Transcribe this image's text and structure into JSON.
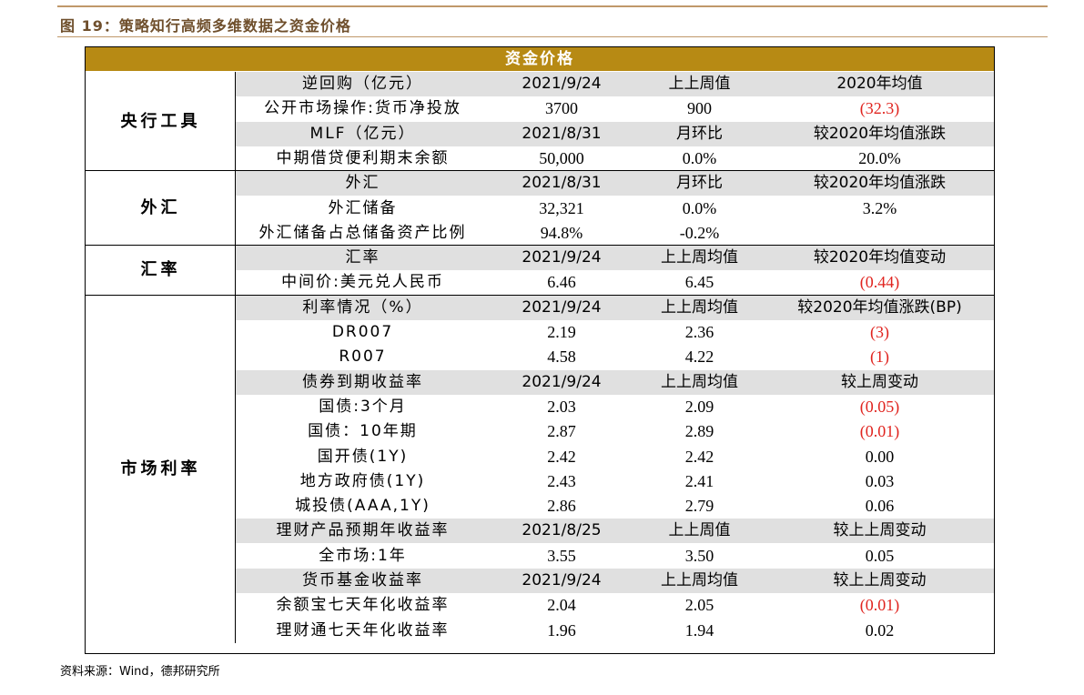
{
  "figure": {
    "title": "图 19：策略知行高频多维数据之资金价格",
    "header": "资金价格",
    "source": "资料来源：Wind，德邦研究所"
  },
  "sections": [
    {
      "label": "央行工具",
      "rows": [
        {
          "type": "hdr",
          "cells": [
            "逆回购（亿元）",
            "2021/9/24",
            "上上周值",
            "2020年均值"
          ]
        },
        {
          "type": "data",
          "cells": [
            "公开市场操作:货币净投放",
            "3700",
            "900",
            "(32.3)"
          ],
          "neg": [
            false,
            false,
            false,
            true
          ]
        },
        {
          "type": "hdr",
          "cells": [
            "MLF（亿元）",
            "2021/8/31",
            "月环比",
            "较2020年均值涨跌"
          ]
        },
        {
          "type": "data",
          "cells": [
            "中期借贷便利期末余额",
            "50,000",
            "0.0%",
            "20.0%"
          ],
          "neg": [
            false,
            false,
            false,
            false
          ]
        }
      ]
    },
    {
      "label": "外汇",
      "rows": [
        {
          "type": "hdr",
          "cells": [
            "外汇",
            "2021/8/31",
            "月环比",
            "较2020年均值涨跌"
          ]
        },
        {
          "type": "data",
          "cells": [
            "外汇储备",
            "32,321",
            "0.0%",
            "3.2%"
          ],
          "neg": [
            false,
            false,
            false,
            false
          ]
        },
        {
          "type": "data",
          "cells": [
            "外汇储备占总储备资产比例",
            "94.8%",
            "-0.2%",
            ""
          ],
          "neg": [
            false,
            false,
            false,
            false
          ]
        }
      ]
    },
    {
      "label": "汇率",
      "rows": [
        {
          "type": "hdr",
          "cells": [
            "汇率",
            "2021/9/24",
            "上上周均值",
            "较2020年均值变动"
          ]
        },
        {
          "type": "data",
          "cells": [
            "中间价:美元兑人民币",
            "6.46",
            "6.45",
            "(0.44)"
          ],
          "neg": [
            false,
            false,
            false,
            true
          ]
        }
      ]
    },
    {
      "label": "市场利率",
      "rows": [
        {
          "type": "hdr",
          "cells": [
            "利率情况（%）",
            "2021/9/24",
            "上上周均值",
            "较2020年均值涨跌(BP)"
          ]
        },
        {
          "type": "data",
          "cells": [
            "DR007",
            "2.19",
            "2.36",
            "(3)"
          ],
          "neg": [
            false,
            false,
            false,
            true
          ]
        },
        {
          "type": "data",
          "cells": [
            "R007",
            "4.58",
            "4.22",
            "(1)"
          ],
          "neg": [
            false,
            false,
            false,
            true
          ]
        },
        {
          "type": "hdr",
          "cells": [
            "债券到期收益率",
            "2021/9/24",
            "上上周均值",
            "较上周变动"
          ]
        },
        {
          "type": "data",
          "cells": [
            "国债:3个月",
            "2.03",
            "2.09",
            "(0.05)"
          ],
          "neg": [
            false,
            false,
            false,
            true
          ]
        },
        {
          "type": "data",
          "cells": [
            "国债：10年期",
            "2.87",
            "2.89",
            "(0.01)"
          ],
          "neg": [
            false,
            false,
            false,
            true
          ]
        },
        {
          "type": "data",
          "cells": [
            "国开债(1Y)",
            "2.42",
            "2.42",
            "0.00"
          ],
          "neg": [
            false,
            false,
            false,
            false
          ]
        },
        {
          "type": "data",
          "cells": [
            "地方政府债(1Y)",
            "2.43",
            "2.41",
            "0.03"
          ],
          "neg": [
            false,
            false,
            false,
            false
          ]
        },
        {
          "type": "data",
          "cells": [
            "城投债(AAA,1Y)",
            "2.86",
            "2.79",
            "0.06"
          ],
          "neg": [
            false,
            false,
            false,
            false
          ]
        },
        {
          "type": "hdr",
          "cells": [
            "理财产品预期年收益率",
            "2021/8/25",
            "上上周值",
            "较上上周变动"
          ]
        },
        {
          "type": "data",
          "cells": [
            "全市场:1年",
            "3.55",
            "3.50",
            "0.05"
          ],
          "neg": [
            false,
            false,
            false,
            false
          ]
        },
        {
          "type": "hdr",
          "cells": [
            "货币基金收益率",
            "2021/9/24",
            "上上周均值",
            "较上上周变动"
          ]
        },
        {
          "type": "data",
          "cells": [
            "余额宝七天年化收益率",
            "2.04",
            "2.05",
            "(0.01)"
          ],
          "neg": [
            false,
            false,
            false,
            true
          ]
        },
        {
          "type": "data",
          "cells": [
            "理财通七天年化收益率",
            "1.96",
            "1.94",
            "0.02"
          ],
          "neg": [
            false,
            false,
            false,
            false
          ]
        }
      ]
    }
  ]
}
